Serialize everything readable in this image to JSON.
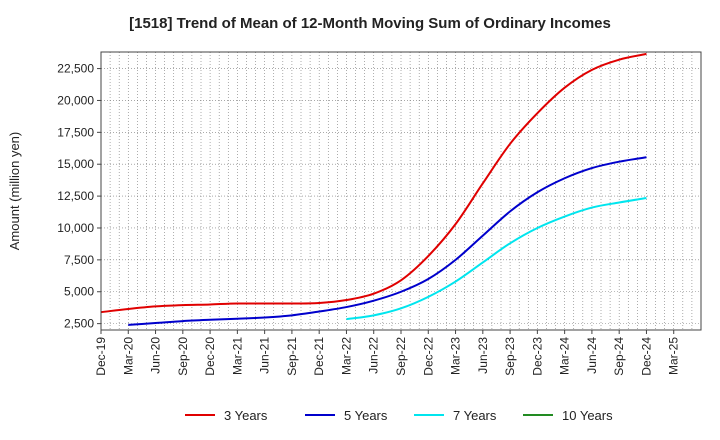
{
  "chart_data": {
    "type": "line",
    "title": "[1518]  Trend of Mean of 12-Month Moving Sum of Ordinary Incomes",
    "xlabel": "",
    "ylabel": "Amount (million yen)",
    "ylim": [
      2000,
      23800
    ],
    "yticks": [
      2500,
      5000,
      7500,
      10000,
      12500,
      15000,
      17500,
      20000,
      22500
    ],
    "ytick_labels": [
      "2,500",
      "5,000",
      "7,500",
      "10,000",
      "12,500",
      "15,000",
      "17,500",
      "20,000",
      "22,500"
    ],
    "xlim_index": [
      0,
      66
    ],
    "xticks": [
      {
        "index": 0,
        "label": "Dec-19"
      },
      {
        "index": 3,
        "label": "Mar-20"
      },
      {
        "index": 6,
        "label": "Jun-20"
      },
      {
        "index": 9,
        "label": "Sep-20"
      },
      {
        "index": 12,
        "label": "Dec-20"
      },
      {
        "index": 15,
        "label": "Mar-21"
      },
      {
        "index": 18,
        "label": "Jun-21"
      },
      {
        "index": 21,
        "label": "Sep-21"
      },
      {
        "index": 24,
        "label": "Dec-21"
      },
      {
        "index": 27,
        "label": "Mar-22"
      },
      {
        "index": 30,
        "label": "Jun-22"
      },
      {
        "index": 33,
        "label": "Sep-22"
      },
      {
        "index": 36,
        "label": "Dec-22"
      },
      {
        "index": 39,
        "label": "Mar-23"
      },
      {
        "index": 42,
        "label": "Jun-23"
      },
      {
        "index": 45,
        "label": "Sep-23"
      },
      {
        "index": 48,
        "label": "Dec-23"
      },
      {
        "index": 51,
        "label": "Mar-24"
      },
      {
        "index": 54,
        "label": "Jun-24"
      },
      {
        "index": 57,
        "label": "Sep-24"
      },
      {
        "index": 60,
        "label": "Dec-24"
      },
      {
        "index": 63,
        "label": "Mar-25"
      }
    ],
    "series": [
      {
        "name": "3 Years",
        "color": "#e00000",
        "x": [
          0,
          3,
          6,
          9,
          12,
          15,
          18,
          21,
          24,
          27,
          30,
          33,
          36,
          39,
          42,
          45,
          48,
          51,
          54,
          57,
          60
        ],
        "values": [
          3400,
          3650,
          3850,
          3950,
          4000,
          4080,
          4080,
          4080,
          4120,
          4350,
          4850,
          5900,
          7800,
          10300,
          13500,
          16600,
          19000,
          21000,
          22400,
          23200,
          23650
        ]
      },
      {
        "name": "5 Years",
        "color": "#0000cc",
        "x": [
          3,
          6,
          9,
          12,
          15,
          18,
          21,
          24,
          27,
          30,
          33,
          36,
          39,
          42,
          45,
          48,
          51,
          54,
          57,
          60
        ],
        "values": [
          2400,
          2550,
          2700,
          2800,
          2880,
          2980,
          3150,
          3450,
          3800,
          4300,
          5000,
          6000,
          7500,
          9400,
          11300,
          12800,
          13900,
          14700,
          15200,
          15550
        ]
      },
      {
        "name": "7 Years",
        "color": "#00e5ee",
        "x": [
          27,
          30,
          33,
          36,
          39,
          42,
          45,
          48,
          51,
          54,
          57,
          60
        ],
        "values": [
          2850,
          3150,
          3700,
          4600,
          5800,
          7300,
          8800,
          10000,
          10900,
          11600,
          12000,
          12350
        ]
      },
      {
        "name": "10 Years",
        "color": "#228b22",
        "x": [],
        "values": []
      }
    ],
    "legend": "bottom-center",
    "grid": true
  }
}
